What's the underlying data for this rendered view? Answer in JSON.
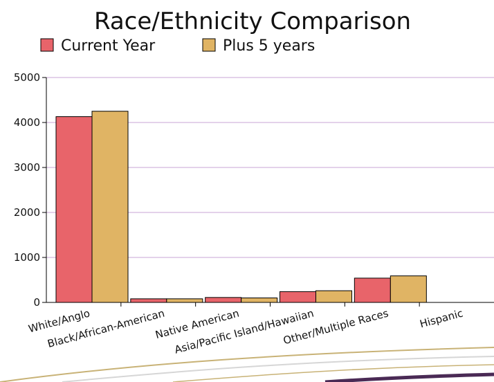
{
  "chart_data": {
    "type": "bar",
    "title": "Race/Ethnicity Comparison",
    "categories": [
      "White/Anglo",
      "Black/African-American",
      "Native American",
      "Asia/Pacific Island/Hawaiian",
      "Other/Multiple Races",
      "Hispanic"
    ],
    "series": [
      {
        "name": "Current Year",
        "values": [
          4130,
          80,
          110,
          240,
          540,
          0
        ],
        "color": "#e8646a"
      },
      {
        "name": "Plus 5 years",
        "values": [
          4250,
          80,
          100,
          260,
          590,
          0
        ],
        "color": "#e0b464"
      }
    ],
    "yticks": [
      0,
      1000,
      2000,
      3000,
      4000,
      5000
    ],
    "ylim": [
      0,
      5000
    ],
    "grid": true,
    "grid_color": "#c9a6d6",
    "legend_position": "top"
  }
}
